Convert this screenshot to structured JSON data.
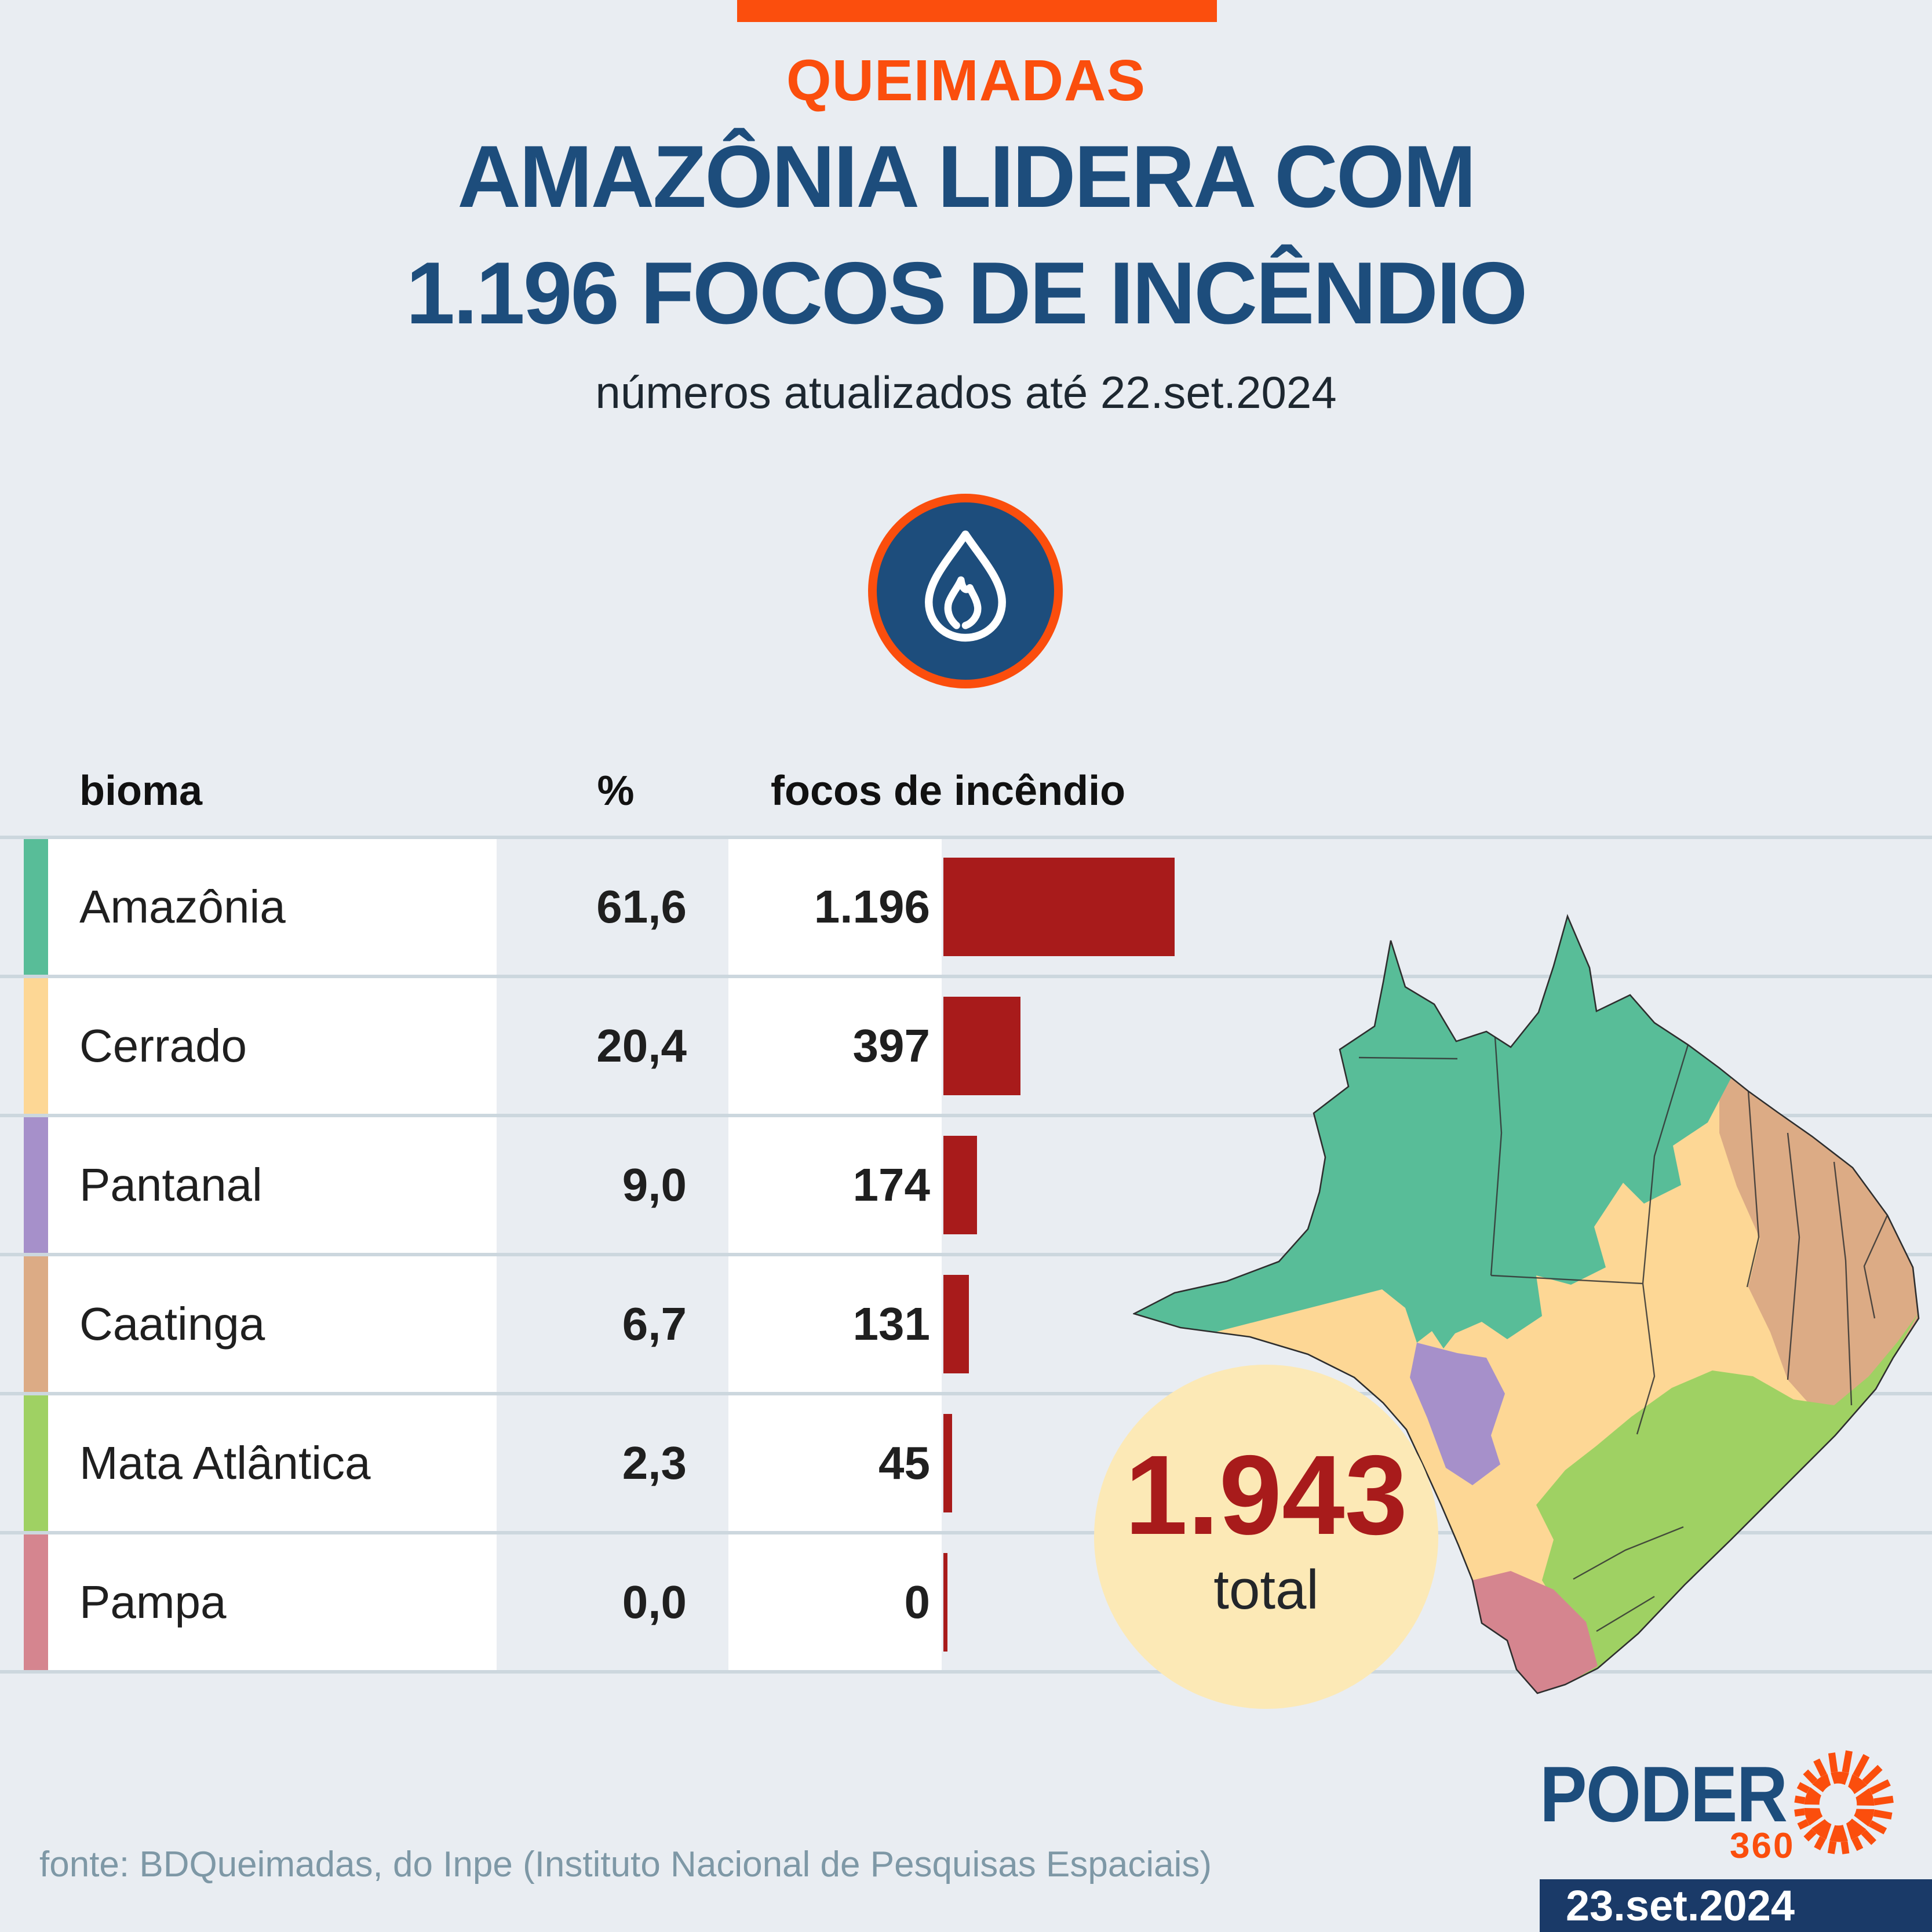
{
  "header": {
    "kicker": "QUEIMADAS",
    "title_line1": "AMAZÔNIA LIDERA COM",
    "title_line2": "1.196 FOCOS DE INCÊNDIO",
    "subtitle": "números atualizados até 22.set.2024"
  },
  "table": {
    "columns": {
      "bioma": "bioma",
      "pct": "%",
      "focos": "focos de incêndio"
    },
    "rows": [
      {
        "bioma": "Amazônia",
        "pct": "61,6",
        "focos": "1.196",
        "value": 1196,
        "color": "#58bd98"
      },
      {
        "bioma": "Cerrado",
        "pct": "20,4",
        "focos": "397",
        "value": 397,
        "color": "#fdd795"
      },
      {
        "bioma": "Pantanal",
        "pct": "9,0",
        "focos": "174",
        "value": 174,
        "color": "#a690ca"
      },
      {
        "bioma": "Caatinga",
        "pct": "6,7",
        "focos": "131",
        "value": 131,
        "color": "#dcab85"
      },
      {
        "bioma": "Mata Atlântica",
        "pct": "2,3",
        "focos": "45",
        "value": 45,
        "color": "#9fd163"
      },
      {
        "bioma": "Pampa",
        "pct": "0,0",
        "focos": "0",
        "value": 0,
        "color": "#d5858f"
      }
    ]
  },
  "total": {
    "value": "1.943",
    "label": "total"
  },
  "footer": {
    "source": "fonte: BDQueimadas, do Inpe (Instituto Nacional de Pesquisas Espaciais)",
    "brand": "PODER",
    "brand_suffix": "360",
    "date": "23.set.2024"
  },
  "colors": {
    "background": "#e9edf2",
    "accent_orange": "#fb4e0d",
    "navy": "#1d4d7c",
    "bar_red": "#a81b1b",
    "grid": "#ccd7de",
    "circle_bg": "#fce9b6",
    "badge_bg": "#1a3a68",
    "source_text": "#7e98a6",
    "amazonia": "#58bd98",
    "cerrado": "#fdd795",
    "pantanal": "#a690ca",
    "caatinga": "#dcab85",
    "mata_atlantica": "#9fd163",
    "pampa": "#d5858f"
  },
  "chart_data": {
    "type": "bar",
    "orientation": "horizontal",
    "title": "AMAZÔNIA LIDERA COM 1.196 FOCOS DE INCÊNDIO",
    "subtitle": "números atualizados até 22.set.2024",
    "categories": [
      "Amazônia",
      "Cerrado",
      "Pantanal",
      "Caatinga",
      "Mata Atlântica",
      "Pampa"
    ],
    "values": [
      1196,
      397,
      174,
      131,
      45,
      0
    ],
    "percentages": [
      61.6,
      20.4,
      9.0,
      6.7,
      2.3,
      0.0
    ],
    "total": 1943,
    "bar_color": "#a81b1b",
    "legend_position": "none",
    "grid": true,
    "xlabel": "focos de incêndio",
    "ylabel": "bioma"
  }
}
